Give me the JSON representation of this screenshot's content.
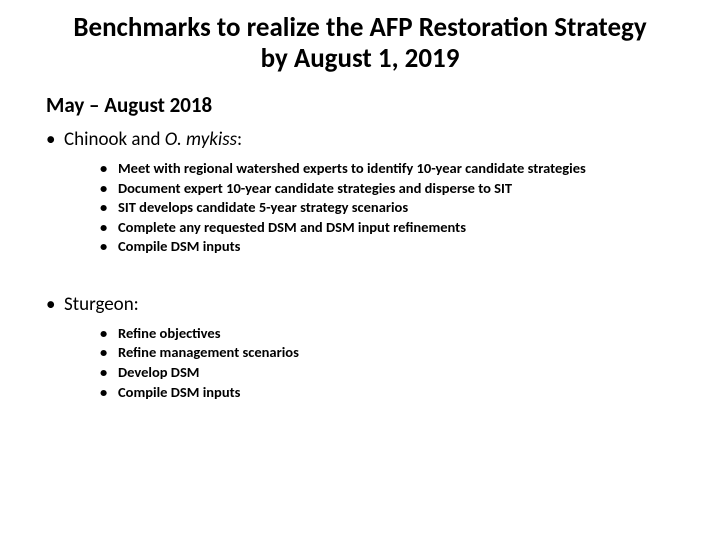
{
  "title": "Benchmarks to realize the AFP Restoration Strategy by August 1, 2019",
  "date_range": "May – August 2018",
  "sections": [
    {
      "header_prefix": "Chinook and ",
      "header_italic": "O. mykiss",
      "header_suffix": ":",
      "items": [
        "Meet with regional watershed experts to identify 10-year candidate strategies",
        "Document expert 10-year candidate strategies and disperse to SIT",
        "SIT develops candidate 5-year strategy scenarios",
        "Complete any requested DSM and DSM input refinements",
        "Compile DSM inputs"
      ]
    },
    {
      "header_prefix": "Sturgeon:",
      "header_italic": "",
      "header_suffix": "",
      "items": [
        "Refine objectives",
        "Refine management scenarios",
        "Develop DSM",
        "Compile DSM inputs"
      ]
    }
  ],
  "colors": {
    "text": "#000000",
    "background": "#ffffff"
  },
  "fonts": {
    "title_size": 27,
    "date_size": 21,
    "section_size": 19,
    "item_size": 14.5
  }
}
